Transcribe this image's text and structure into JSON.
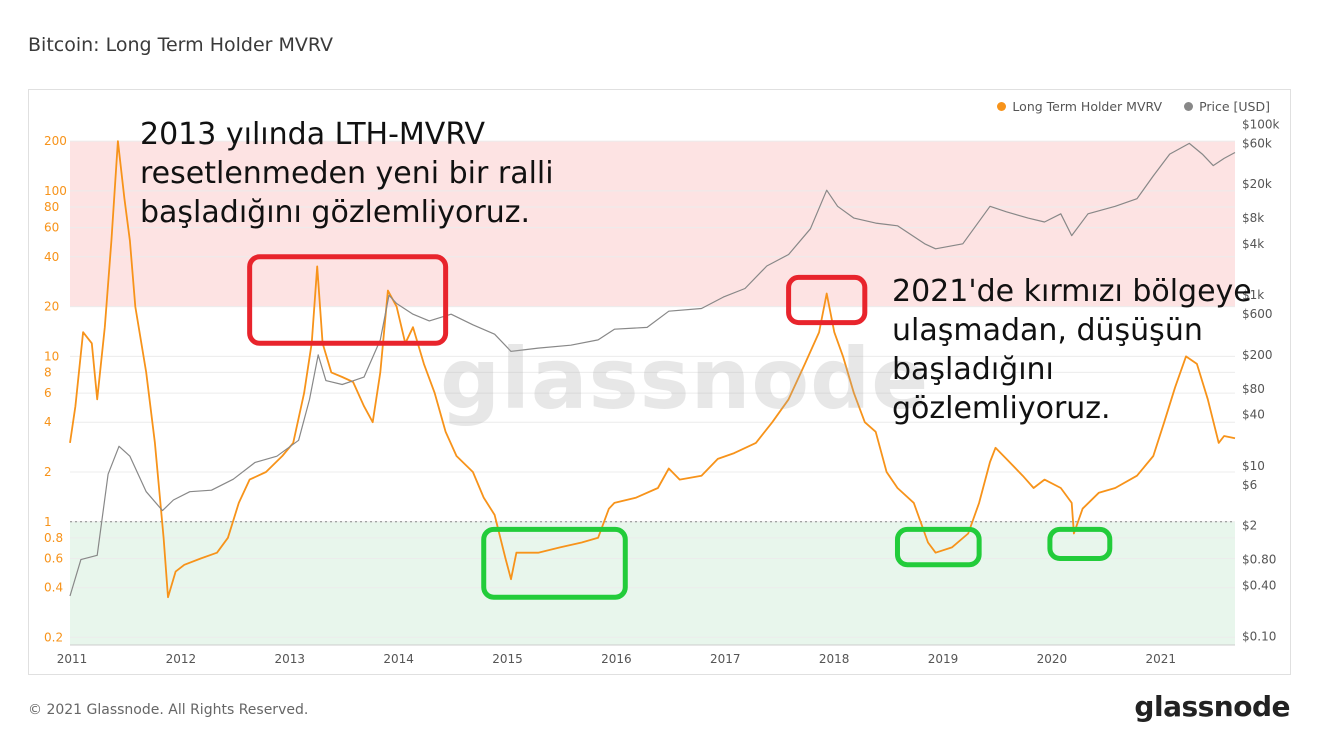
{
  "title": "Bitcoin: Long Term Holder MVRV",
  "legend": [
    {
      "label": "Long Term Holder MVRV",
      "color": "#f7931a"
    },
    {
      "label": "Price [USD]",
      "color": "#888888"
    }
  ],
  "watermark": "glassnode",
  "annotations": {
    "top_left": [
      "2013 yılında LTH-MVRV",
      "resetlenmeden yeni bir ralli",
      "başladığını gözlemliyoruz."
    ],
    "right": [
      "2021'de kırmızı bölgeye",
      "ulaşmadan, düşüşün",
      "başladığını",
      "gözlemliyoruz."
    ]
  },
  "footer": {
    "copyright": "© 2021 Glassnode. All Rights Reserved.",
    "logo": "glassnode"
  },
  "colors": {
    "mvrv": "#f7931a",
    "price": "#888888",
    "red_zone": "#fde3e3",
    "green_zone": "#e8f6ec",
    "red_box": "#e8242c",
    "green_box": "#22cc3a"
  },
  "chart_data": {
    "type": "line",
    "x_ticks": [
      "2011",
      "2012",
      "2013",
      "2014",
      "2015",
      "2016",
      "2017",
      "2018",
      "2019",
      "2020",
      "2021"
    ],
    "left_axis_ticks": [
      "0.2",
      "0.4",
      "0.6",
      "0.8",
      "1",
      "2",
      "4",
      "6",
      "8",
      "10",
      "20",
      "40",
      "60",
      "80",
      "100",
      "200"
    ],
    "right_axis_ticks": [
      "$0.10",
      "$0.40",
      "$0.80",
      "$2",
      "$6",
      "$10",
      "$40",
      "$80",
      "$200",
      "$600",
      "$1k",
      "$4k",
      "$8k",
      "$20k",
      "$60k",
      "$100k"
    ],
    "left_scale": "log",
    "right_scale": "log",
    "left_range": [
      0.18,
      300
    ],
    "right_range": [
      0.08,
      140000
    ],
    "x_range": [
      2011.0,
      2021.7
    ],
    "zones": [
      {
        "name": "red",
        "from": 20,
        "to": 200
      },
      {
        "name": "green",
        "from": 0.18,
        "to": 1
      }
    ],
    "series": [
      {
        "name": "Long Term Holder MVRV",
        "axis": "left",
        "points": [
          [
            2011.0,
            3.0
          ],
          [
            2011.05,
            5.0
          ],
          [
            2011.12,
            14
          ],
          [
            2011.2,
            12
          ],
          [
            2011.25,
            5.5
          ],
          [
            2011.32,
            15
          ],
          [
            2011.38,
            50
          ],
          [
            2011.44,
            200
          ],
          [
            2011.5,
            90
          ],
          [
            2011.55,
            50
          ],
          [
            2011.6,
            20
          ],
          [
            2011.7,
            8
          ],
          [
            2011.78,
            3.0
          ],
          [
            2011.86,
            0.8
          ],
          [
            2011.9,
            0.35
          ],
          [
            2011.97,
            0.5
          ],
          [
            2012.05,
            0.55
          ],
          [
            2012.2,
            0.6
          ],
          [
            2012.35,
            0.65
          ],
          [
            2012.45,
            0.8
          ],
          [
            2012.55,
            1.3
          ],
          [
            2012.65,
            1.8
          ],
          [
            2012.8,
            2.0
          ],
          [
            2012.95,
            2.5
          ],
          [
            2013.05,
            3.0
          ],
          [
            2013.15,
            6.0
          ],
          [
            2013.22,
            12
          ],
          [
            2013.27,
            35
          ],
          [
            2013.32,
            12
          ],
          [
            2013.4,
            8
          ],
          [
            2013.5,
            7.5
          ],
          [
            2013.6,
            7.0
          ],
          [
            2013.7,
            5.0
          ],
          [
            2013.78,
            4.0
          ],
          [
            2013.85,
            8.0
          ],
          [
            2013.92,
            25
          ],
          [
            2014.0,
            20
          ],
          [
            2014.08,
            12
          ],
          [
            2014.15,
            15
          ],
          [
            2014.25,
            9
          ],
          [
            2014.35,
            6.0
          ],
          [
            2014.45,
            3.5
          ],
          [
            2014.55,
            2.5
          ],
          [
            2014.7,
            2.0
          ],
          [
            2014.8,
            1.4
          ],
          [
            2014.9,
            1.1
          ],
          [
            2015.0,
            0.6
          ],
          [
            2015.05,
            0.45
          ],
          [
            2015.1,
            0.65
          ],
          [
            2015.3,
            0.65
          ],
          [
            2015.5,
            0.7
          ],
          [
            2015.7,
            0.75
          ],
          [
            2015.85,
            0.8
          ],
          [
            2015.95,
            1.2
          ],
          [
            2016.0,
            1.3
          ],
          [
            2016.2,
            1.4
          ],
          [
            2016.4,
            1.6
          ],
          [
            2016.5,
            2.1
          ],
          [
            2016.6,
            1.8
          ],
          [
            2016.8,
            1.9
          ],
          [
            2016.95,
            2.4
          ],
          [
            2017.1,
            2.6
          ],
          [
            2017.3,
            3.0
          ],
          [
            2017.45,
            4.0
          ],
          [
            2017.6,
            5.5
          ],
          [
            2017.75,
            9.0
          ],
          [
            2017.88,
            14
          ],
          [
            2017.95,
            24
          ],
          [
            2018.02,
            14
          ],
          [
            2018.1,
            10
          ],
          [
            2018.2,
            6.0
          ],
          [
            2018.3,
            4.0
          ],
          [
            2018.4,
            3.5
          ],
          [
            2018.5,
            2.0
          ],
          [
            2018.6,
            1.6
          ],
          [
            2018.75,
            1.3
          ],
          [
            2018.88,
            0.75
          ],
          [
            2018.95,
            0.65
          ],
          [
            2019.1,
            0.7
          ],
          [
            2019.25,
            0.85
          ],
          [
            2019.35,
            1.3
          ],
          [
            2019.45,
            2.3
          ],
          [
            2019.5,
            2.8
          ],
          [
            2019.6,
            2.4
          ],
          [
            2019.75,
            1.9
          ],
          [
            2019.85,
            1.6
          ],
          [
            2019.95,
            1.8
          ],
          [
            2020.1,
            1.6
          ],
          [
            2020.2,
            1.3
          ],
          [
            2020.22,
            0.85
          ],
          [
            2020.3,
            1.2
          ],
          [
            2020.45,
            1.5
          ],
          [
            2020.6,
            1.6
          ],
          [
            2020.8,
            1.9
          ],
          [
            2020.95,
            2.5
          ],
          [
            2021.05,
            4.0
          ],
          [
            2021.15,
            6.5
          ],
          [
            2021.25,
            10
          ],
          [
            2021.35,
            9.0
          ],
          [
            2021.45,
            5.5
          ],
          [
            2021.55,
            3.0
          ],
          [
            2021.6,
            3.3
          ],
          [
            2021.7,
            3.2
          ]
        ]
      },
      {
        "name": "Price [USD]",
        "axis": "right",
        "points": [
          [
            2011.0,
            0.3
          ],
          [
            2011.1,
            0.8
          ],
          [
            2011.25,
            0.9
          ],
          [
            2011.35,
            8
          ],
          [
            2011.45,
            17
          ],
          [
            2011.55,
            13
          ],
          [
            2011.7,
            5
          ],
          [
            2011.85,
            3
          ],
          [
            2011.95,
            4
          ],
          [
            2012.1,
            5
          ],
          [
            2012.3,
            5.2
          ],
          [
            2012.5,
            7
          ],
          [
            2012.7,
            11
          ],
          [
            2012.9,
            13
          ],
          [
            2013.1,
            20
          ],
          [
            2013.2,
            60
          ],
          [
            2013.28,
            200
          ],
          [
            2013.35,
            100
          ],
          [
            2013.5,
            90
          ],
          [
            2013.7,
            110
          ],
          [
            2013.85,
            300
          ],
          [
            2013.93,
            1000
          ],
          [
            2014.0,
            800
          ],
          [
            2014.15,
            600
          ],
          [
            2014.3,
            500
          ],
          [
            2014.5,
            600
          ],
          [
            2014.7,
            450
          ],
          [
            2014.9,
            350
          ],
          [
            2015.05,
            220
          ],
          [
            2015.3,
            240
          ],
          [
            2015.6,
            260
          ],
          [
            2015.85,
            300
          ],
          [
            2016.0,
            400
          ],
          [
            2016.3,
            420
          ],
          [
            2016.5,
            650
          ],
          [
            2016.8,
            700
          ],
          [
            2017.0,
            950
          ],
          [
            2017.2,
            1200
          ],
          [
            2017.4,
            2200
          ],
          [
            2017.6,
            3000
          ],
          [
            2017.8,
            6000
          ],
          [
            2017.95,
            17000
          ],
          [
            2018.05,
            11000
          ],
          [
            2018.2,
            8000
          ],
          [
            2018.4,
            7000
          ],
          [
            2018.6,
            6500
          ],
          [
            2018.85,
            4000
          ],
          [
            2018.95,
            3500
          ],
          [
            2019.2,
            4000
          ],
          [
            2019.45,
            11000
          ],
          [
            2019.6,
            9500
          ],
          [
            2019.8,
            8000
          ],
          [
            2019.95,
            7200
          ],
          [
            2020.1,
            9000
          ],
          [
            2020.2,
            5000
          ],
          [
            2020.35,
            9000
          ],
          [
            2020.6,
            11000
          ],
          [
            2020.8,
            13500
          ],
          [
            2020.95,
            25000
          ],
          [
            2021.1,
            45000
          ],
          [
            2021.28,
            60000
          ],
          [
            2021.4,
            45000
          ],
          [
            2021.5,
            33000
          ],
          [
            2021.6,
            40000
          ],
          [
            2021.7,
            47000
          ]
        ]
      }
    ]
  }
}
